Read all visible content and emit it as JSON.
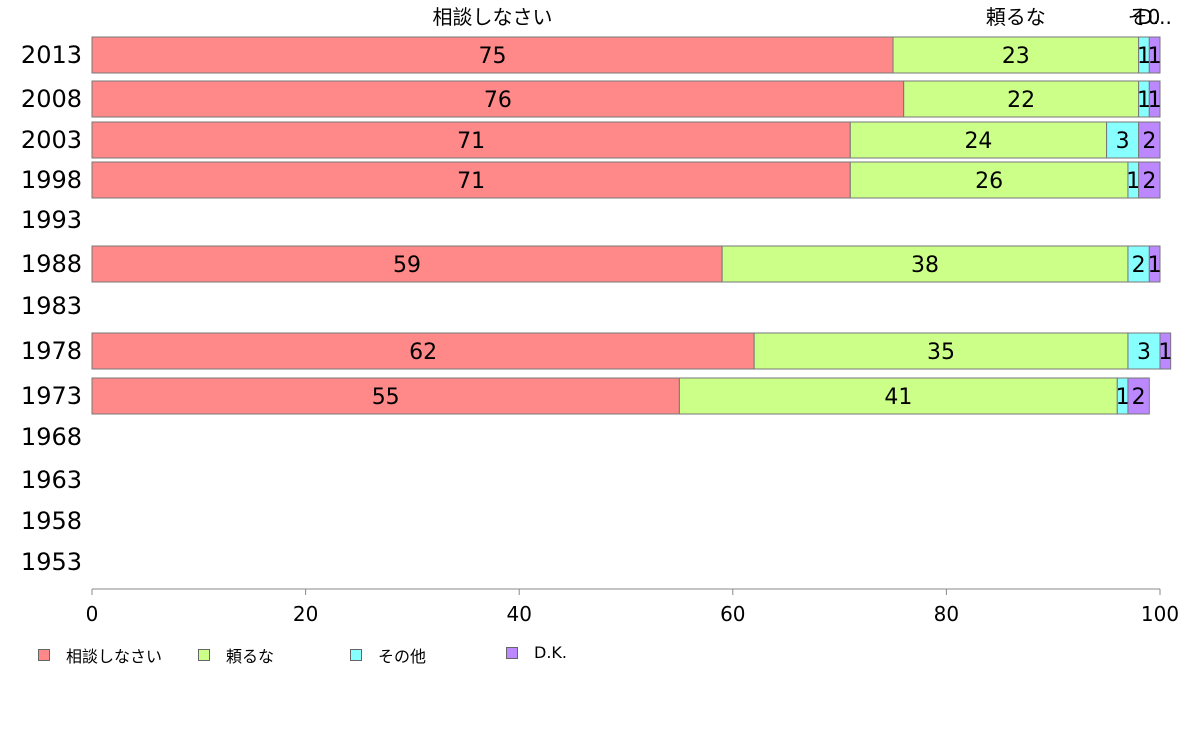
{
  "chart_data": {
    "type": "bar",
    "orientation": "horizontal",
    "stacked": true,
    "categories": [
      "2013",
      "2008",
      "2003",
      "1998",
      "1993",
      "1988",
      "1983",
      "1978",
      "1973",
      "1968",
      "1963",
      "1958",
      "1953"
    ],
    "series": [
      {
        "name": "相談しなさい",
        "color": "#FF8888",
        "values": [
          75,
          76,
          71,
          71,
          null,
          59,
          null,
          62,
          55,
          null,
          null,
          null,
          null
        ]
      },
      {
        "name": "頼るな",
        "color": "#CCFF88",
        "values": [
          23,
          22,
          24,
          26,
          null,
          38,
          null,
          35,
          41,
          null,
          null,
          null,
          null
        ]
      },
      {
        "name": "その他",
        "color": "#88FFFF",
        "values": [
          1,
          1,
          3,
          1,
          null,
          2,
          null,
          3,
          1,
          null,
          null,
          null,
          null
        ]
      },
      {
        "name": "D.K.",
        "color": "#BB88FF",
        "values": [
          1,
          1,
          2,
          2,
          null,
          1,
          null,
          1,
          2,
          null,
          null,
          null,
          null
        ]
      }
    ],
    "top_labels": [
      "相談しなさい",
      "頼るな",
      "そ0",
      "D..."
    ],
    "xlim": [
      0,
      100
    ],
    "xticks": [
      "0",
      "20",
      "40",
      "60",
      "80",
      "100"
    ],
    "legend_position": "bottom-left",
    "grid": false
  }
}
